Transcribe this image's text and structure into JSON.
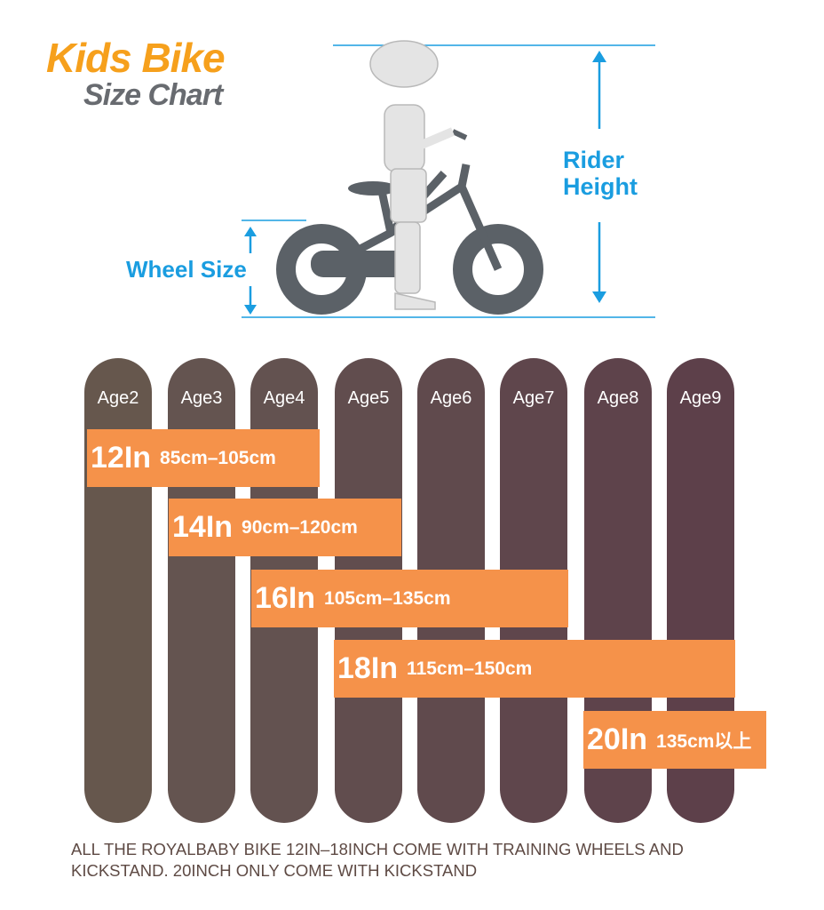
{
  "header": {
    "title": "Kids Bike",
    "subtitle": "Size Chart"
  },
  "labels": {
    "rider_height": "Rider Height",
    "wheel_size": "Wheel Size"
  },
  "ages": [
    "Age2",
    "Age3",
    "Age4",
    "Age5",
    "Age6",
    "Age7",
    "Age8",
    "Age9"
  ],
  "sizes": [
    {
      "size": "12In",
      "range": "85cm–105cm"
    },
    {
      "size": "14In",
      "range": "90cm–120cm"
    },
    {
      "size": "16In",
      "range": "105cm–135cm"
    },
    {
      "size": "18In",
      "range": "115cm–150cm"
    },
    {
      "size": "20In",
      "range": "135cm以上"
    }
  ],
  "footer": {
    "note": "ALL THE ROYALBABY BIKE 12IN–18INCH COME WITH TRAINING WHEELS AND KICKSTAND. 20INCH ONLY COME WITH KICKSTAND"
  }
}
